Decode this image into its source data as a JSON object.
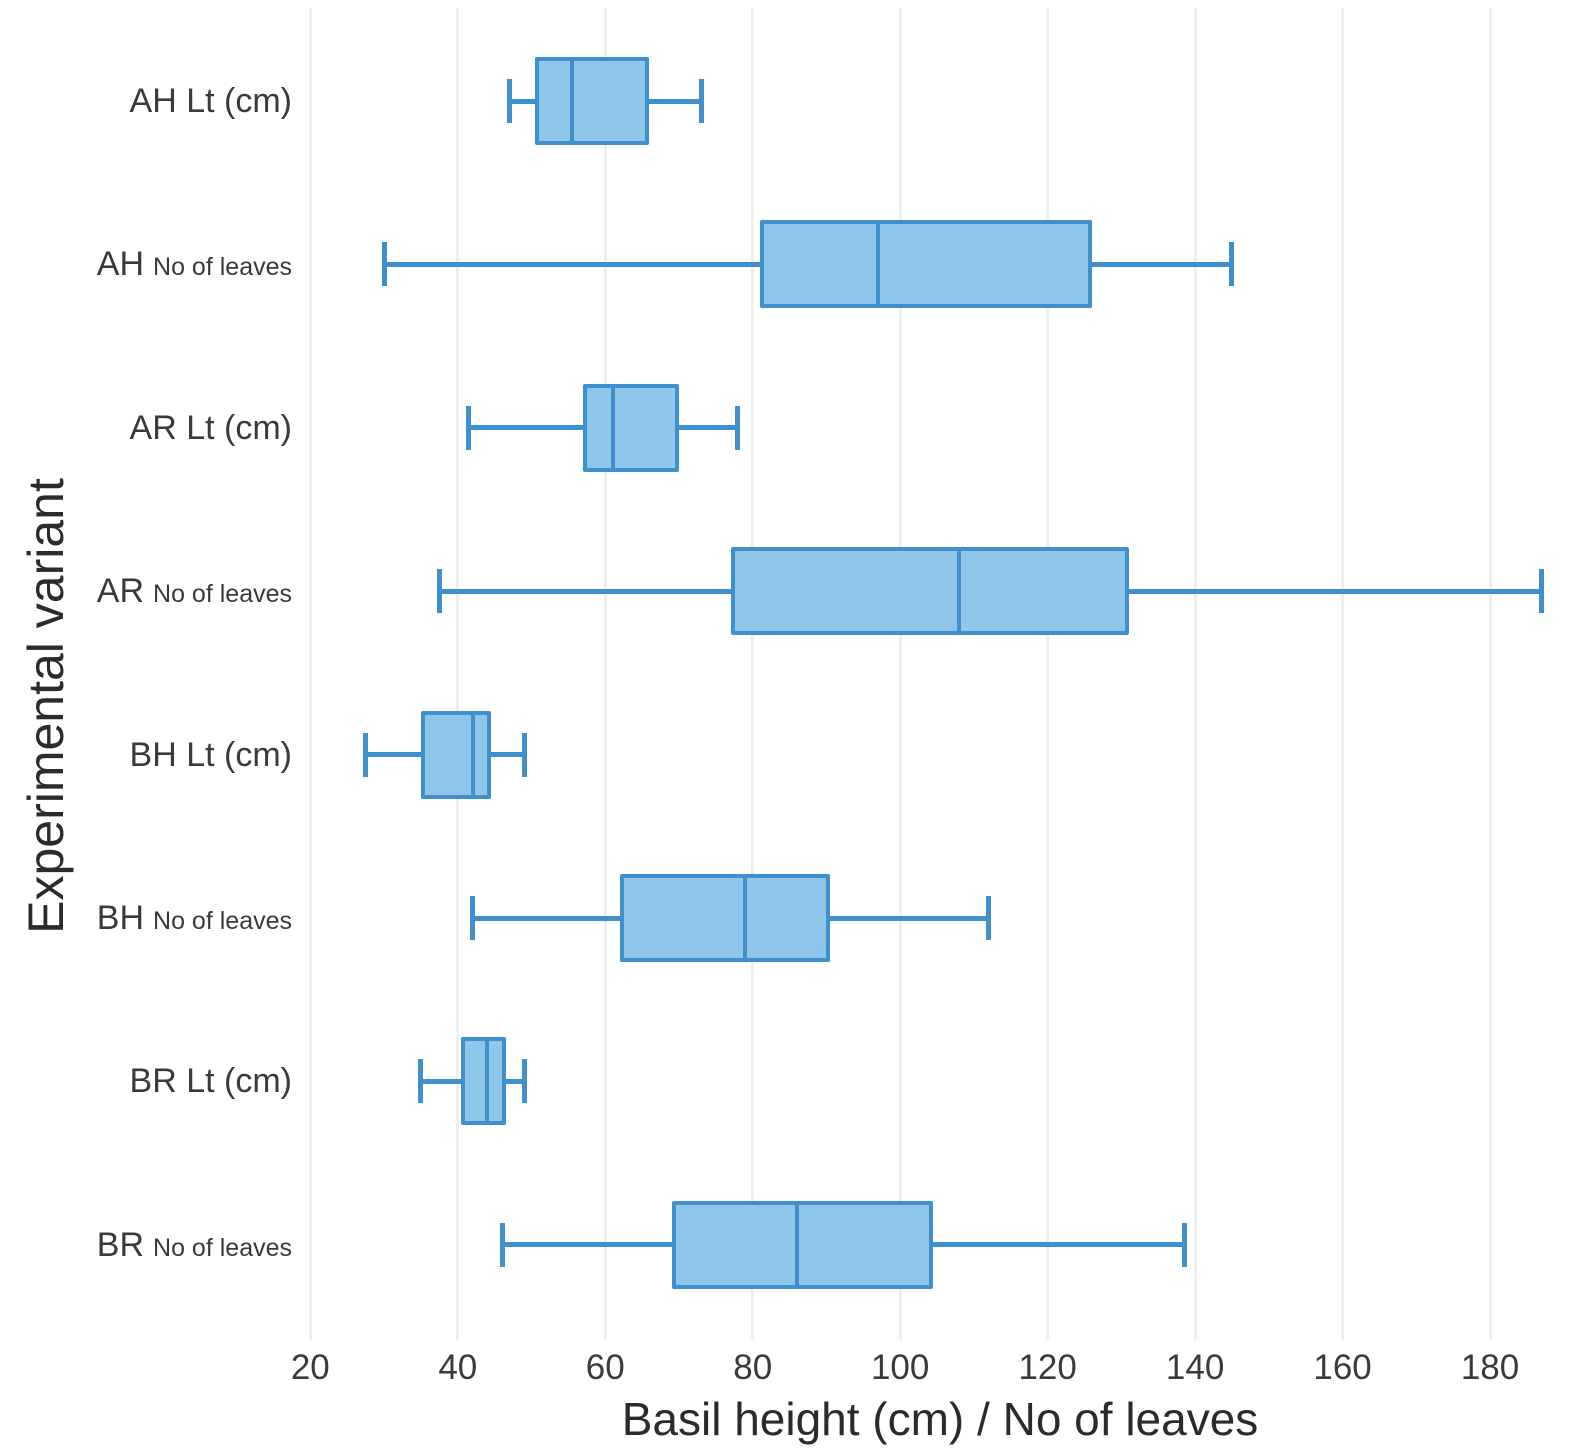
{
  "chart_data": {
    "type": "boxplot",
    "orientation": "horizontal",
    "title": "",
    "xlabel": "Basil height (cm) / No of leaves",
    "ylabel": "Experimental variant",
    "xlim": [
      18.6,
      192.2
    ],
    "xticks": [
      20,
      40,
      60,
      80,
      100,
      120,
      140,
      160,
      180
    ],
    "grid": true,
    "legend": false,
    "categories": [
      "AH Lt (cm)",
      "AH No of leaves",
      "AR Lt (cm)",
      "AR No of leaves",
      "BH Lt (cm)",
      "BH No of leaves",
      "BR Lt (cm)",
      "BR No of leaves"
    ],
    "series": [
      {
        "group": "AH",
        "measure": "Lt (cm)",
        "small_measure": false,
        "whisker_low": 47,
        "q1": 50.5,
        "median": 55.5,
        "q3": 66,
        "whisker_high": 73
      },
      {
        "group": "AH",
        "measure": "No of leaves",
        "small_measure": true,
        "whisker_low": 30,
        "q1": 81,
        "median": 97,
        "q3": 126,
        "whisker_high": 145
      },
      {
        "group": "AR",
        "measure": "Lt (cm)",
        "small_measure": false,
        "whisker_low": 41.5,
        "q1": 57,
        "median": 61,
        "q3": 70,
        "whisker_high": 78
      },
      {
        "group": "AR",
        "measure": "No of leaves",
        "small_measure": true,
        "whisker_low": 37.5,
        "q1": 77,
        "median": 108,
        "q3": 131,
        "whisker_high": 187
      },
      {
        "group": "BH",
        "measure": "Lt (cm)",
        "small_measure": false,
        "whisker_low": 27.5,
        "q1": 35,
        "median": 42,
        "q3": 44.5,
        "whisker_high": 49
      },
      {
        "group": "BH",
        "measure": "No of leaves",
        "small_measure": true,
        "whisker_low": 42,
        "q1": 62,
        "median": 79,
        "q3": 90.5,
        "whisker_high": 112
      },
      {
        "group": "BR",
        "measure": "Lt (cm)",
        "small_measure": false,
        "whisker_low": 35,
        "q1": 40.5,
        "median": 44,
        "q3": 46.5,
        "whisker_high": 49
      },
      {
        "group": "BR",
        "measure": "No of leaves",
        "small_measure": true,
        "whisker_low": 46,
        "q1": 69,
        "median": 86,
        "q3": 104.5,
        "whisker_high": 138.5
      }
    ],
    "colors": {
      "box_fill": "#8ec7e9",
      "box_stroke": "#3f90cd",
      "gridline": "#efefef",
      "tick_text": "#3a3a3a",
      "title_text": "#2b2b2b"
    }
  }
}
